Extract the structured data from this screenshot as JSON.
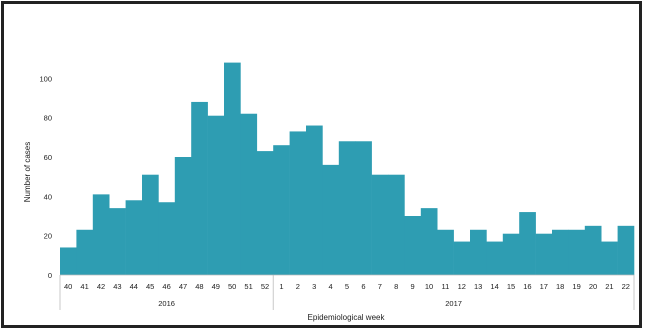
{
  "chart_data": {
    "type": "bar",
    "title": "",
    "xlabel": "Epidemiological week",
    "ylabel": "Number of cases",
    "ylim": [
      0,
      120
    ],
    "yticks": [
      0,
      20,
      40,
      60,
      80,
      100
    ],
    "grid": false,
    "bar_color": "#2e9db2",
    "categories": [
      "40",
      "41",
      "42",
      "43",
      "44",
      "45",
      "46",
      "47",
      "48",
      "49",
      "50",
      "51",
      "52",
      "1",
      "2",
      "3",
      "4",
      "5",
      "6",
      "7",
      "8",
      "9",
      "10",
      "11",
      "12",
      "13",
      "14",
      "15",
      "16",
      "17",
      "18",
      "19",
      "20",
      "21",
      "22"
    ],
    "values": [
      14,
      23,
      41,
      34,
      38,
      51,
      37,
      60,
      88,
      81,
      108,
      82,
      63,
      66,
      73,
      76,
      56,
      68,
      68,
      51,
      51,
      30,
      34,
      23,
      17,
      23,
      17,
      21,
      32,
      21,
      23,
      23,
      25,
      17,
      25
    ],
    "groups": [
      {
        "label": "2016",
        "start": 0,
        "end": 12
      },
      {
        "label": "2017",
        "start": 13,
        "end": 34
      }
    ]
  }
}
